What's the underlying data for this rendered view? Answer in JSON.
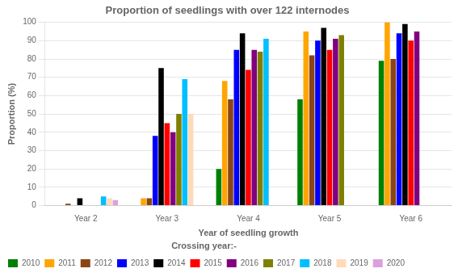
{
  "chart_data": {
    "type": "bar",
    "title": "Proportion of seedlings with over 122 internodes",
    "xlabel": "Year of seedling growth",
    "ylabel": "Proportion (%)",
    "categories": [
      "Year 2",
      "Year 3",
      "Year 4",
      "Year 5",
      "Year 6"
    ],
    "legend_title": "Crossing year:-",
    "series": [
      {
        "name": "2010",
        "color": "#008000",
        "values": [
          0,
          0,
          20,
          58,
          79
        ]
      },
      {
        "name": "2011",
        "color": "#FFA500",
        "values": [
          0,
          4,
          68,
          95,
          100
        ]
      },
      {
        "name": "2012",
        "color": "#8B4513",
        "values": [
          1,
          4,
          58,
          82,
          80
        ]
      },
      {
        "name": "2013",
        "color": "#0000FF",
        "values": [
          0,
          38,
          85,
          90,
          94
        ]
      },
      {
        "name": "2014",
        "color": "#000000",
        "values": [
          4,
          75,
          94,
          97,
          99
        ]
      },
      {
        "name": "2015",
        "color": "#FF0000",
        "values": [
          0,
          45,
          74,
          85,
          90
        ]
      },
      {
        "name": "2016",
        "color": "#800080",
        "values": [
          0,
          40,
          85,
          91,
          95
        ]
      },
      {
        "name": "2017",
        "color": "#808000",
        "values": [
          0,
          50,
          84,
          93,
          0
        ]
      },
      {
        "name": "2018",
        "color": "#00BFFF",
        "values": [
          5,
          69,
          91,
          0,
          0
        ]
      },
      {
        "name": "2019",
        "color": "#FFDAB9",
        "values": [
          4,
          50,
          0,
          0,
          0
        ]
      },
      {
        "name": "2020",
        "color": "#DDA0DD",
        "values": [
          3,
          0,
          0,
          0,
          0
        ]
      }
    ],
    "ylim": [
      0,
      100
    ],
    "yticks": [
      0,
      10,
      20,
      30,
      40,
      50,
      60,
      70,
      80,
      90,
      100
    ],
    "grid": true,
    "legend": "lower left"
  }
}
